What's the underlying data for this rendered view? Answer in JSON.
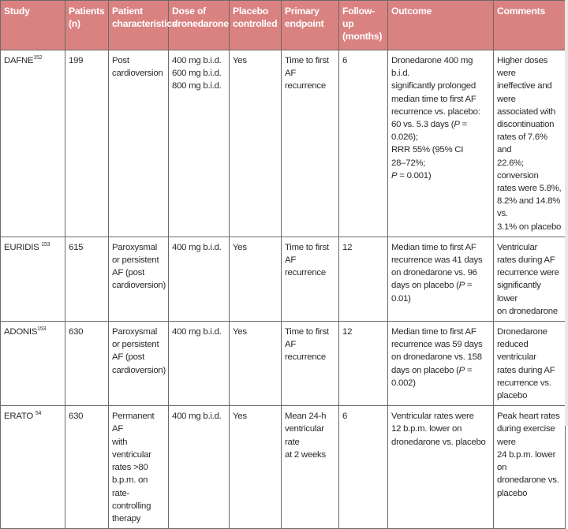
{
  "table": {
    "headers": [
      "Study",
      "Patients\n(n)",
      "Patient\ncharacteristics",
      "Dose of\ndronedarone",
      "Placebo\ncontrolled",
      "Primary\nendpoint",
      "Follow-\nup\n(months)",
      "Outcome",
      "Comments"
    ],
    "rows": [
      {
        "study": "DAFNE",
        "ref": "152",
        "patients": "199",
        "characteristics": "Post\ncardioversion",
        "dose": "400 mg b.i.d.\n600 mg b.i.d.\n800 mg b.i.d.",
        "placebo": "Yes",
        "endpoint": "Time to first\nAF recurrence",
        "followup": "6",
        "outcome": "Dronedarone 400 mg b.i.d.\nsignificantly prolonged\nmedian time to first AF\nrecurrence vs. placebo:\n60 vs. 5.3 days (P = 0.026);\nRRR 55% (95% CI\n28–72%;\nP = 0.001)",
        "comments": "Higher doses were\nineffective and were\nassociated with\ndiscontinuation\nrates of 7.6% and\n22.6%; conversion\nrates were 5.8%,\n8.2% and 14.8% vs.\n3.1% on placebo"
      },
      {
        "study": "EURIDIS",
        "ref": "153",
        "patients": "615",
        "characteristics": "Paroxysmal\nor persistent\nAF (post\ncardioversion)",
        "dose": "400 mg b.i.d.",
        "placebo": "Yes",
        "endpoint": "Time to first\nAF recurrence",
        "followup": "12",
        "outcome": "Median time to first AF\nrecurrence was 41 days\non dronedarone vs. 96\ndays on placebo (P = 0.01)",
        "comments": "Ventricular\nrates during AF\nrecurrence were\nsignificantly lower\non dronedarone"
      },
      {
        "study": "ADONIS",
        "ref": "153",
        "patients": "630",
        "characteristics": "Paroxysmal\nor persistent\nAF (post\ncardioversion)",
        "dose": "400 mg b.i.d.",
        "placebo": "Yes",
        "endpoint": "Time to first\nAF recurrence",
        "followup": "12",
        "outcome": "Median time to first AF\nrecurrence was 59 days\non dronedarone vs. 158\ndays on placebo (P =\n0.002)",
        "comments": "Dronedarone\nreduced ventricular\nrates during AF\nrecurrence vs.\nplacebo"
      },
      {
        "study": "ERATO",
        "ref": "54",
        "patients": "630",
        "characteristics": "Permanent AF\nwith ventricular\nrates >80\nb.p.m. on\nrate-controlling\ntherapy",
        "dose": "400 mg b.i.d.",
        "placebo": "Yes",
        "endpoint": "Mean 24-h\nventricular rate\nat 2 weeks",
        "followup": "6",
        "outcome": "Ventricular rates were\n12 b.p.m. lower on\ndronedarone vs. placebo",
        "comments": "Peak heart rates\nduring exercise were\n24 b.p.m. lower on\ndronedarone vs.\nplacebo"
      }
    ]
  },
  "colors": {
    "header_bg": "#d98281",
    "header_text": "#ffffff",
    "border": "#6a6a6a",
    "body_text": "#2a2a2a"
  }
}
